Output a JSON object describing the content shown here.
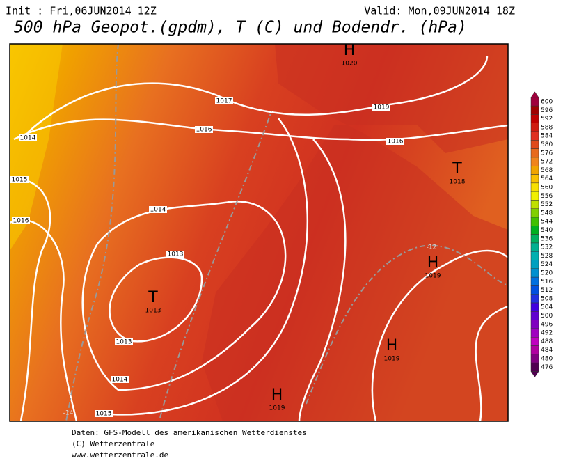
{
  "header": {
    "init": "Init : Fri,06JUN2014 12Z",
    "valid": "Valid: Mon,09JUN2014 18Z",
    "title": "500 hPa Geopot.(gpdm), T (C) und Bodendr. (hPa)"
  },
  "isobar_labels": [
    "1017",
    "1019",
    "1016",
    "1016",
    "1014",
    "1015",
    "1014",
    "1016",
    "1013",
    "1013",
    "1014",
    "1015"
  ],
  "temperature_labels": [
    "-12",
    "-14"
  ],
  "centers": [
    {
      "symbol": "H",
      "value": "1020"
    },
    {
      "symbol": "T",
      "value": "1018"
    },
    {
      "symbol": "H",
      "value": "1019"
    },
    {
      "symbol": "T",
      "value": "1013"
    },
    {
      "symbol": "H",
      "value": "1019"
    },
    {
      "symbol": "H",
      "value": "1019"
    }
  ],
  "colorbar": {
    "labels": [
      600,
      596,
      592,
      588,
      584,
      580,
      576,
      572,
      568,
      564,
      560,
      556,
      552,
      548,
      544,
      540,
      536,
      532,
      528,
      524,
      520,
      516,
      512,
      508,
      504,
      500,
      496,
      492,
      488,
      484,
      480,
      476
    ],
    "colors": [
      "#a0003c",
      "#a00000",
      "#c00000",
      "#d01c10",
      "#e03020",
      "#e04a1c",
      "#e86a1c",
      "#f0841c",
      "#f0a400",
      "#f8c000",
      "#f8e000",
      "#f0f000",
      "#c0e000",
      "#80d000",
      "#40c000",
      "#00b020",
      "#00b060",
      "#00b090",
      "#00b0b0",
      "#00a0c0",
      "#0090d0",
      "#0070e0",
      "#0050e0",
      "#2030e0",
      "#4000e0",
      "#6000d0",
      "#8000c0",
      "#a000c0",
      "#c000c0",
      "#b000a0",
      "#800080",
      "#500050"
    ]
  },
  "footer": [
    "Daten: GFS-Modell des amerikanischen Wetterdienstes",
    "(C) Wetterzentrale",
    "www.wetterzentrale.de"
  ]
}
